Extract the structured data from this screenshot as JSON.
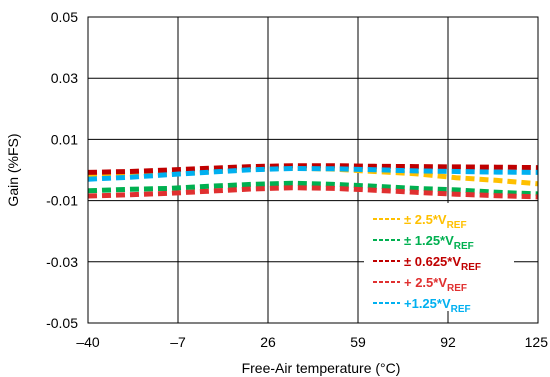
{
  "chart_data": {
    "type": "line",
    "xlabel": "Free-Air temperature (°C)",
    "ylabel": "Gain (%FS)",
    "xlim": [
      -40,
      125
    ],
    "ylim": [
      -0.05,
      0.05
    ],
    "x_ticks": [
      -40,
      -7,
      26,
      59,
      92,
      125
    ],
    "x_tick_labels": [
      "–40",
      "–7",
      "26",
      "59",
      "92",
      "125"
    ],
    "y_ticks": [
      -0.05,
      -0.03,
      -0.01,
      0.01,
      0.03,
      0.05
    ],
    "y_tick_labels": [
      "-0.05",
      "-0.03",
      "-0.01",
      "0.01",
      "0.03",
      "0.05"
    ],
    "grid": true,
    "legend_position": "bottom-right",
    "series": [
      {
        "label_prefix": "± 2.5*V",
        "label_sub": "REF",
        "color": "#FFC000",
        "x": [
          -40,
          -25,
          -10,
          5,
          20,
          35,
          50,
          65,
          80,
          95,
          110,
          125
        ],
        "y": [
          -0.0015,
          -0.0013,
          -0.0011,
          -0.0005,
          0.0003,
          0.0006,
          0.0003,
          -0.0005,
          -0.0012,
          -0.0025,
          -0.0034,
          -0.0045
        ]
      },
      {
        "label_prefix": "± 1.25*V",
        "label_sub": "REF",
        "color": "#00B050",
        "x": [
          -40,
          -25,
          -10,
          5,
          20,
          35,
          50,
          65,
          80,
          95,
          110,
          125
        ],
        "y": [
          -0.0068,
          -0.0063,
          -0.006,
          -0.0053,
          -0.0047,
          -0.0043,
          -0.0047,
          -0.0053,
          -0.006,
          -0.0065,
          -0.0073,
          -0.0078
        ]
      },
      {
        "label_prefix": "± 0.625*V",
        "label_sub": "REF",
        "color": "#C00000",
        "x": [
          -40,
          -25,
          -10,
          5,
          20,
          35,
          50,
          65,
          80,
          95,
          110,
          125
        ],
        "y": [
          -0.0008,
          -0.0005,
          0,
          0.0006,
          0.0011,
          0.0014,
          0.0014,
          0.0012,
          0.0011,
          0.001,
          0.0009,
          0.0008
        ]
      },
      {
        "label_prefix": "+ 2.5*V",
        "label_sub": "REF",
        "color": "#E03030",
        "x": [
          -40,
          -25,
          -10,
          5,
          20,
          35,
          50,
          65,
          80,
          95,
          110,
          125
        ],
        "y": [
          -0.0085,
          -0.0081,
          -0.0076,
          -0.0069,
          -0.0062,
          -0.0058,
          -0.006,
          -0.0066,
          -0.0073,
          -0.0079,
          -0.0084,
          -0.0088
        ]
      },
      {
        "label_prefix": "+1.25*V",
        "label_sub": "REF",
        "color": "#00B0F0",
        "x": [
          -40,
          -25,
          -10,
          5,
          20,
          35,
          50,
          65,
          80,
          95,
          110,
          125
        ],
        "y": [
          -0.003,
          -0.0024,
          -0.0015,
          -0.0007,
          0.0001,
          0.0005,
          0.0004,
          0.0001,
          -0.0003,
          -0.0005,
          -0.0007,
          -0.0008
        ]
      }
    ]
  }
}
